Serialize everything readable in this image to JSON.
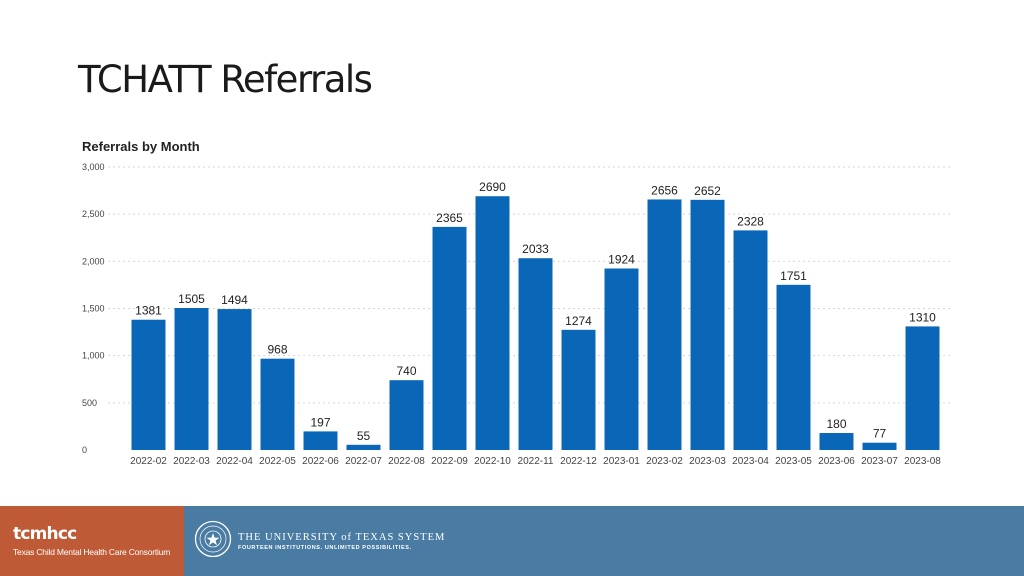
{
  "slide": {
    "title": "TCHATT Referrals"
  },
  "colors": {
    "bar": "#0a66b7",
    "footer_left": "#bf5a36",
    "footer_right": "#4a7ca3"
  },
  "chart_data": {
    "type": "bar",
    "title": "Referrals by Month",
    "xlabel": "",
    "ylabel": "",
    "ylim": [
      0,
      3000
    ],
    "yticks": [
      "0",
      "500",
      "1,000",
      "1,500",
      "2,000",
      "2,500",
      "3,000"
    ],
    "ytick_values": [
      0,
      500,
      1000,
      1500,
      2000,
      2500,
      3000
    ],
    "grid": true,
    "categories": [
      "2022-02",
      "2022-03",
      "2022-04",
      "2022-05",
      "2022-06",
      "2022-07",
      "2022-08",
      "2022-09",
      "2022-10",
      "2022-11",
      "2022-12",
      "2023-01",
      "2023-02",
      "2023-03",
      "2023-04",
      "2023-05",
      "2023-06",
      "2023-07",
      "2023-08"
    ],
    "values": [
      1381,
      1505,
      1494,
      968,
      197,
      55,
      740,
      2365,
      2690,
      2033,
      1274,
      1924,
      2656,
      2652,
      2328,
      1751,
      180,
      77,
      1310
    ]
  },
  "footer": {
    "brand": "tcmhcc",
    "brand_sub": "Texas Child Mental Health Care Consortium",
    "ut_name": "THE UNIVERSITY of TEXAS SYSTEM",
    "ut_tagline": "FOURTEEN INSTITUTIONS. UNLIMITED POSSIBILITIES."
  }
}
